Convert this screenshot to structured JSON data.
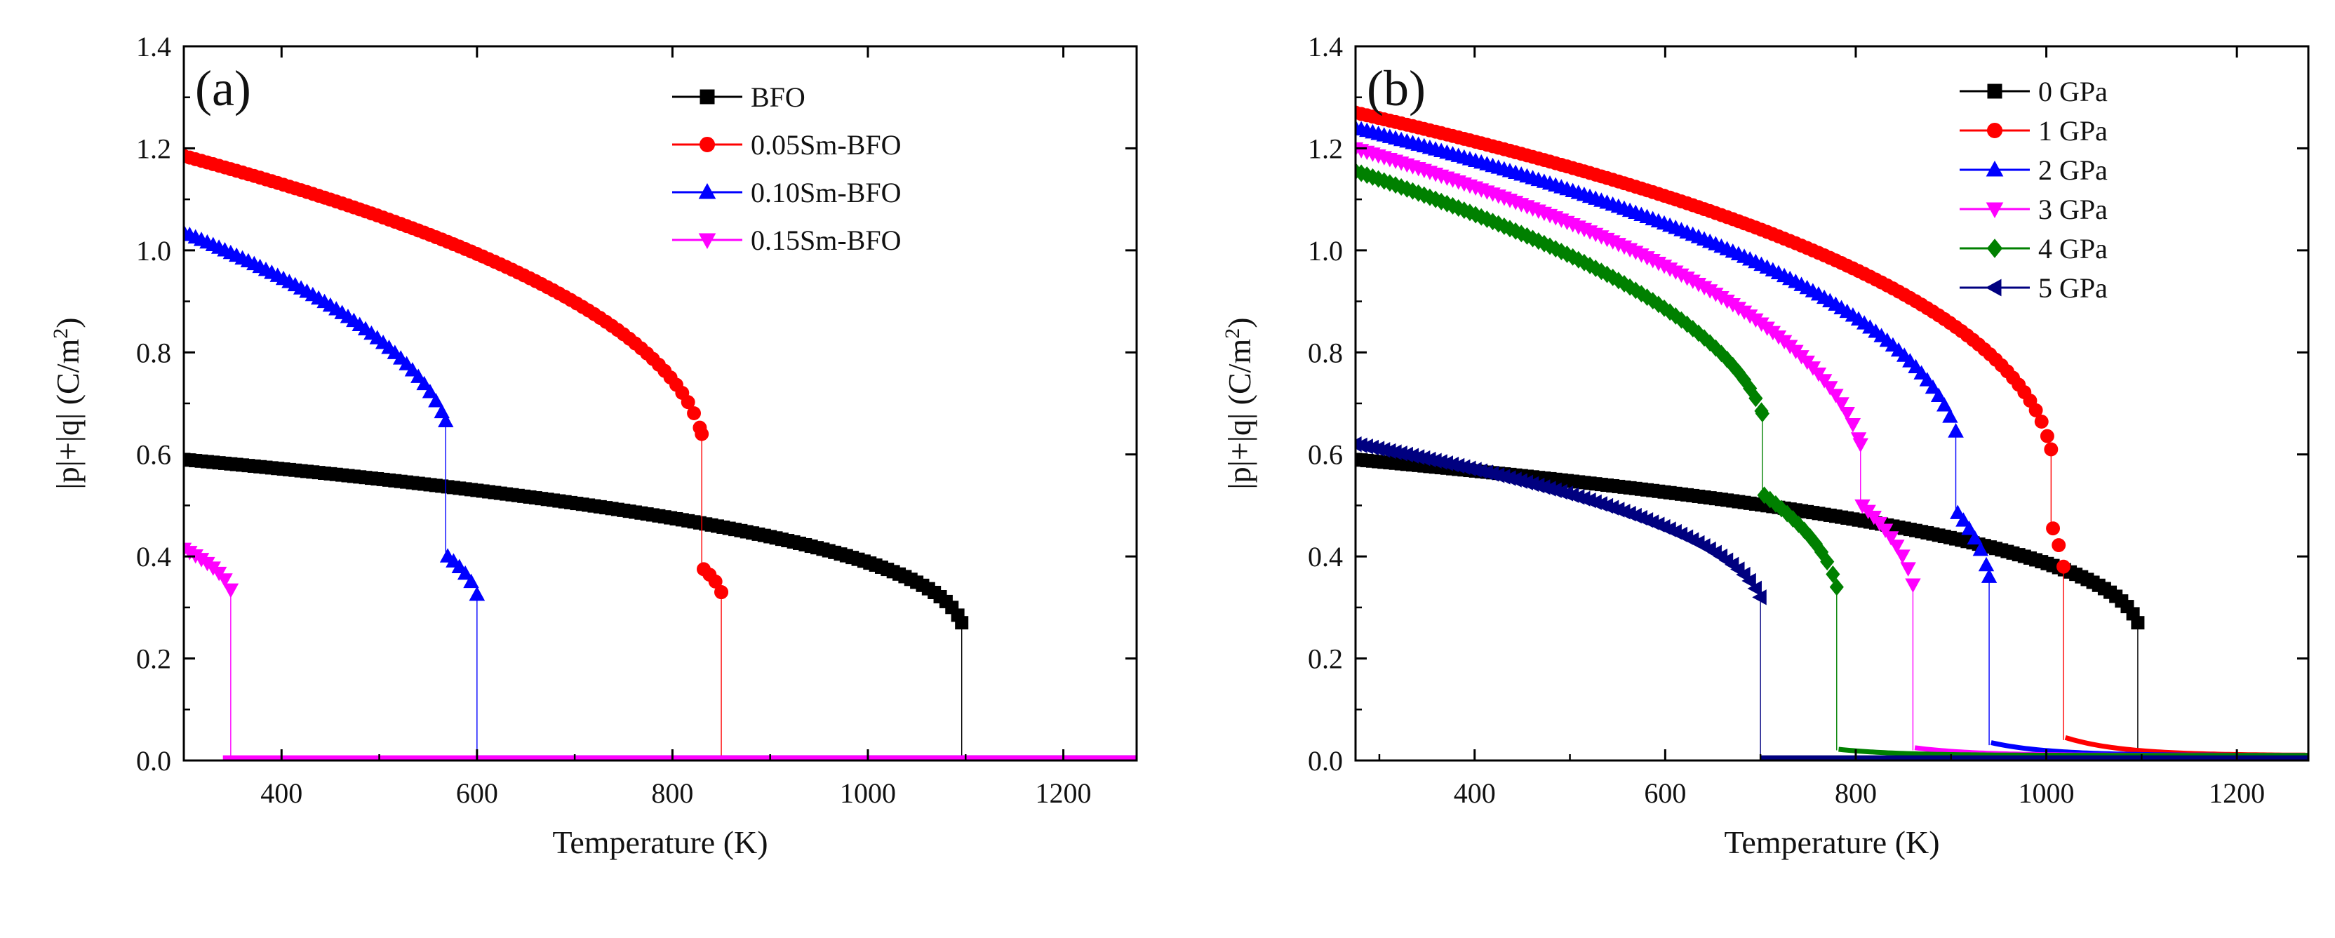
{
  "chart_data": [
    {
      "panel_label": "(a)",
      "type": "scatter",
      "title": "",
      "xlabel": "Temperature (K)",
      "ylabel_main": "|p|+|q| (C/m",
      "ylabel_sup": "2",
      "ylabel_tail": ")",
      "xlim": [
        300,
        1275
      ],
      "ylim": [
        0,
        1.4
      ],
      "xticks": [
        400,
        600,
        800,
        1000,
        1200
      ],
      "yticks": [
        0.0,
        0.2,
        0.4,
        0.6,
        0.8,
        1.0,
        1.2,
        1.4
      ],
      "ytick_labels": [
        "0.0",
        "0.2",
        "0.4",
        "0.6",
        "0.8",
        "1.0",
        "1.2",
        "1.4"
      ],
      "xtick_labels": [
        "400",
        "600",
        "800",
        "1000",
        "1200"
      ],
      "legend_position": "top-right",
      "series": [
        {
          "name": "BFO",
          "color": "#000000",
          "marker": "square",
          "segments": [
            {
              "t0": 300,
              "t1": 1096,
              "p0": 0.59,
              "p1": 0.27,
              "k": 1.18,
              "p": 0.38,
              "tc": 1100
            }
          ],
          "drops": [
            {
              "x": 1096,
              "from": 0.27,
              "to": 0.0
            }
          ],
          "zero_from": 1096
        },
        {
          "name": "0.05Sm-BFO",
          "color": "#ff0000",
          "marker": "circle",
          "segments": [
            {
              "t0": 300,
              "t1": 830,
              "p0": 1.185,
              "p1": 0.64,
              "k": 1.72,
              "p": 0.45,
              "tc": 835
            },
            {
              "t0": 832,
              "t1": 850,
              "p0": 0.375,
              "p1": 0.33,
              "k": 0.6,
              "p": 0.5,
              "tc": 852
            }
          ],
          "drops": [
            {
              "x": 830,
              "from": 0.64,
              "to": 0.375
            },
            {
              "x": 850,
              "from": 0.33,
              "to": 0.0
            }
          ],
          "zero_from": 850
        },
        {
          "name": "0.10Sm-BFO",
          "color": "#0000ff",
          "marker": "triangle-up",
          "segments": [
            {
              "t0": 300,
              "t1": 568,
              "p0": 1.035,
              "p1": 0.665,
              "k": 1.58,
              "p": 0.5,
              "tc": 575
            },
            {
              "t0": 570,
              "t1": 600,
              "p0": 0.4,
              "p1": 0.325,
              "k": 0.6,
              "p": 0.5,
              "tc": 602
            }
          ],
          "drops": [
            {
              "x": 568,
              "from": 0.665,
              "to": 0.4
            },
            {
              "x": 600,
              "from": 0.325,
              "to": 0.0
            }
          ],
          "zero_from": 600
        },
        {
          "name": "0.15Sm-BFO",
          "color": "#ff00ff",
          "marker": "triangle-down",
          "segments": [
            {
              "t0": 300,
              "t1": 348,
              "p0": 0.415,
              "p1": 0.335,
              "k": 0.55,
              "p": 0.5,
              "tc": 350
            }
          ],
          "drops": [
            {
              "x": 348,
              "from": 0.335,
              "to": 0.0
            }
          ],
          "zero_from": 340
        }
      ]
    },
    {
      "panel_label": "(b)",
      "type": "scatter",
      "title": "",
      "xlabel": "Temperature (K)",
      "ylabel_main": "|p|+|q| (C/m",
      "ylabel_sup": "2",
      "ylabel_tail": ")",
      "xlim": [
        275,
        1275
      ],
      "ylim": [
        0,
        1.4
      ],
      "xticks": [
        400,
        600,
        800,
        1000,
        1200
      ],
      "yticks": [
        0.0,
        0.2,
        0.4,
        0.6,
        0.8,
        1.0,
        1.2,
        1.4
      ],
      "ytick_labels": [
        "0.0",
        "0.2",
        "0.4",
        "0.6",
        "0.8",
        "1.0",
        "1.2",
        "1.4"
      ],
      "xtick_labels": [
        "400",
        "600",
        "800",
        "1000",
        "1200"
      ],
      "legend_position": "top-right",
      "series": [
        {
          "name": "0 GPa",
          "color": "#000000",
          "marker": "square",
          "segments": [
            {
              "t0": 275,
              "t1": 1096,
              "p0": 0.59,
              "p1": 0.27,
              "k": 1.18,
              "p": 0.38,
              "tc": 1100
            }
          ],
          "drops": [
            {
              "x": 1096,
              "from": 0.27,
              "to": 0.0
            }
          ],
          "zero_from": 1096
        },
        {
          "name": "1 GPa",
          "color": "#ff0000",
          "marker": "circle",
          "segments": [
            {
              "t0": 275,
              "t1": 1005,
              "p0": 1.27,
              "p1": 0.61,
              "k": 2.0,
              "p": 0.42,
              "tc": 1010
            },
            {
              "t0": 1007,
              "t1": 1018,
              "p0": 0.455,
              "p1": 0.38,
              "k": 0.6,
              "p": 0.5,
              "tc": 1020
            }
          ],
          "drops": [
            {
              "x": 1005,
              "from": 0.61,
              "to": 0.455
            },
            {
              "x": 1018,
              "from": 0.38,
              "to": 0.04
            }
          ],
          "tail": {
            "t0": 1020,
            "t1": 1275,
            "p0": 0.045,
            "p1": 0.01
          },
          "zero_from": 1275
        },
        {
          "name": "2 GPa",
          "color": "#0000ff",
          "marker": "triangle-up",
          "segments": [
            {
              "t0": 275,
              "t1": 905,
              "p0": 1.24,
              "p1": 0.645,
              "k": 1.85,
              "p": 0.45,
              "tc": 912
            },
            {
              "t0": 907,
              "t1": 940,
              "p0": 0.485,
              "p1": 0.36,
              "k": 0.6,
              "p": 0.5,
              "tc": 942
            }
          ],
          "drops": [
            {
              "x": 905,
              "from": 0.645,
              "to": 0.485
            },
            {
              "x": 940,
              "from": 0.36,
              "to": 0.03
            }
          ],
          "tail": {
            "t0": 942,
            "t1": 1275,
            "p0": 0.035,
            "p1": 0.01
          },
          "zero_from": 1275
        },
        {
          "name": "3 GPa",
          "color": "#ff00ff",
          "marker": "triangle-down",
          "segments": [
            {
              "t0": 275,
              "t1": 805,
              "p0": 1.2,
              "p1": 0.62,
              "k": 1.85,
              "p": 0.45,
              "tc": 812
            },
            {
              "t0": 807,
              "t1": 860,
              "p0": 0.5,
              "p1": 0.345,
              "k": 0.75,
              "p": 0.5,
              "tc": 862
            }
          ],
          "drops": [
            {
              "x": 805,
              "from": 0.62,
              "to": 0.5
            },
            {
              "x": 860,
              "from": 0.345,
              "to": 0.02
            }
          ],
          "tail": {
            "t0": 862,
            "t1": 1275,
            "p0": 0.025,
            "p1": 0.01
          },
          "zero_from": 1275
        },
        {
          "name": "4 GPa",
          "color": "#008000",
          "marker": "diamond",
          "segments": [
            {
              "t0": 275,
              "t1": 702,
              "p0": 1.155,
              "p1": 0.68,
              "k": 1.8,
              "p": 0.5,
              "tc": 708
            },
            {
              "t0": 704,
              "t1": 780,
              "p0": 0.52,
              "p1": 0.34,
              "k": 0.95,
              "p": 0.5,
              "tc": 782
            }
          ],
          "drops": [
            {
              "x": 702,
              "from": 0.68,
              "to": 0.52
            },
            {
              "x": 780,
              "from": 0.34,
              "to": 0.02
            }
          ],
          "tail": {
            "t0": 782,
            "t1": 1275,
            "p0": 0.022,
            "p1": 0.01
          },
          "zero_from": 1275
        },
        {
          "name": "5 GPa",
          "color": "#000080",
          "marker": "triangle-left",
          "segments": [
            {
              "t0": 275,
              "t1": 700,
              "p0": 0.62,
              "p1": 0.32,
              "k": 1.0,
              "p": 0.45,
              "tc": 705
            }
          ],
          "drops": [
            {
              "x": 700,
              "from": 0.32,
              "to": 0.0
            }
          ],
          "zero_from": 700
        }
      ]
    }
  ]
}
